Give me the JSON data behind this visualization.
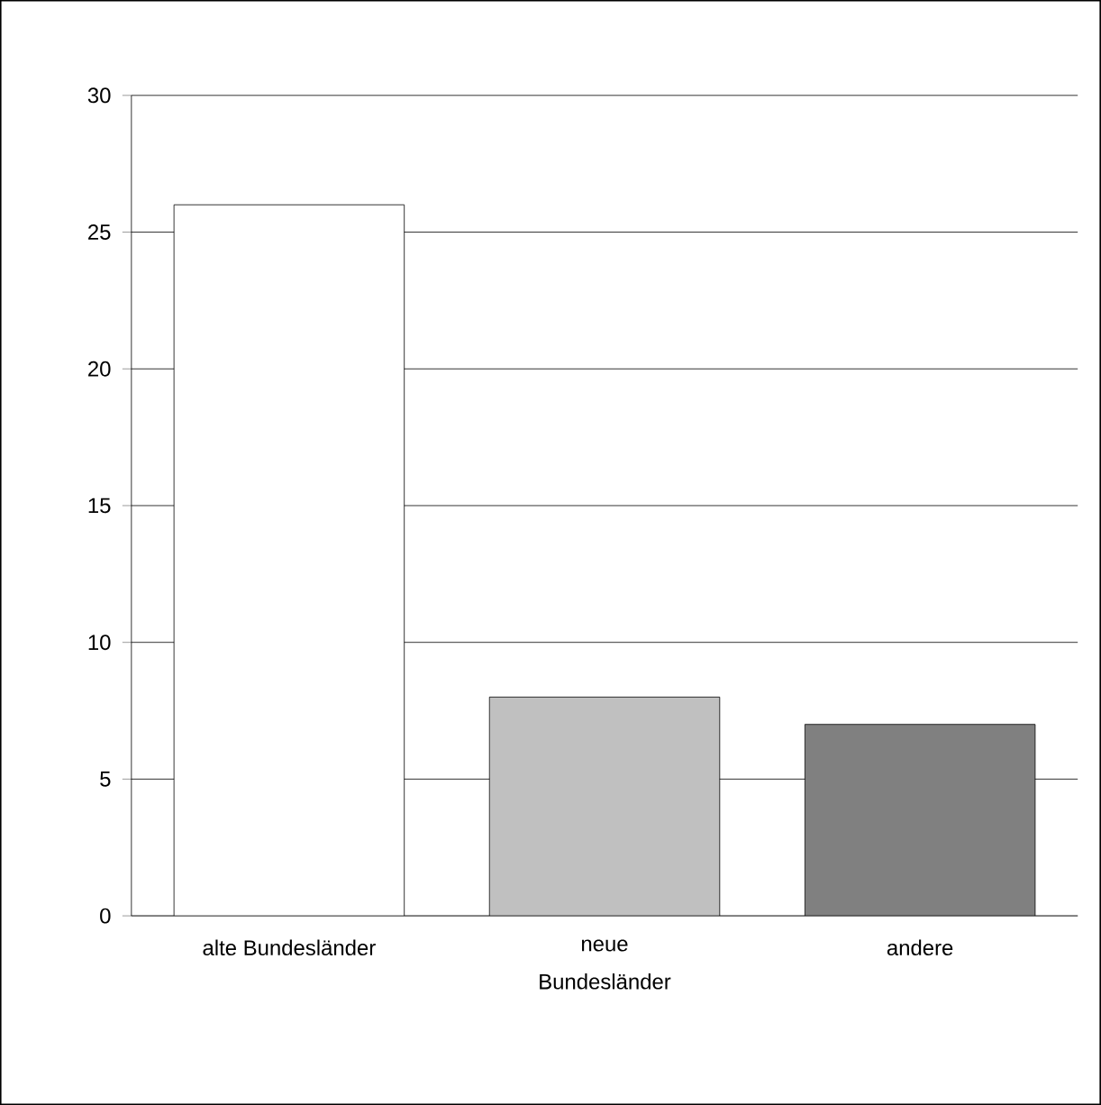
{
  "chart_data": {
    "type": "bar",
    "categories": [
      "alte Bundesländer",
      "neue Bundesländer",
      "andere"
    ],
    "values": [
      26,
      8,
      7
    ],
    "colors": [
      "#ffffff",
      "#c0c0c0",
      "#808080"
    ],
    "ylim": [
      0,
      30
    ],
    "yticks": [
      0,
      5,
      10,
      15,
      20,
      25,
      30
    ],
    "grid": "y"
  }
}
